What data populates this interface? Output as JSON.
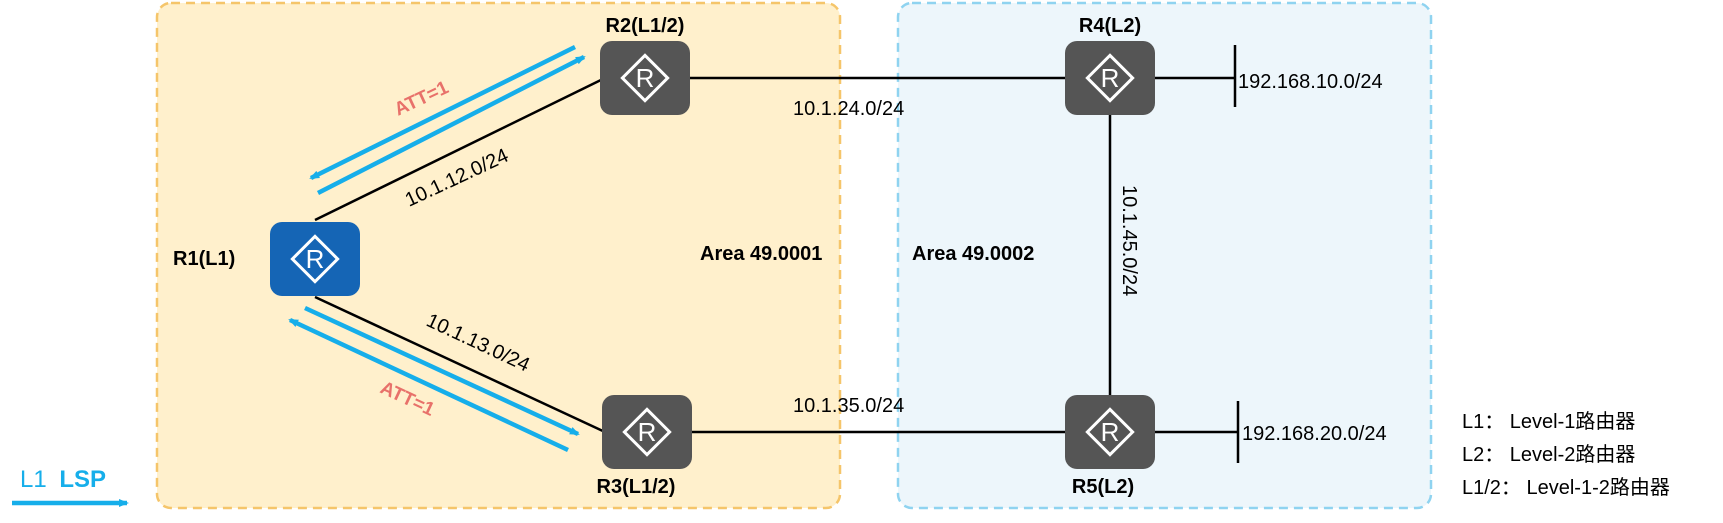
{
  "colors": {
    "area1_fill": "#fff0cc",
    "area1_border": "#f5c56a",
    "area2_fill": "#edf6fb",
    "area2_border": "#8fd3f0",
    "router_dark": "#555555",
    "router_blue": "#1565b5",
    "lsp_arrow": "#16aeea",
    "att_text": "#e8716a"
  },
  "areas": {
    "area1": {
      "label": "Area 49.0001"
    },
    "area2": {
      "label": "Area 49.0002"
    }
  },
  "routers": {
    "r1": {
      "label": "R1(L1)",
      "icon": "router-icon"
    },
    "r2": {
      "label": "R2(L1/2)",
      "icon": "router-icon"
    },
    "r3": {
      "label": "R3(L1/2)",
      "icon": "router-icon"
    },
    "r4": {
      "label": "R4(L2)",
      "icon": "router-icon"
    },
    "r5": {
      "label": "R5(L2)",
      "icon": "router-icon"
    }
  },
  "links": {
    "r1_r2": "10.1.12.0/24",
    "r1_r3": "10.1.13.0/24",
    "r2_r4": "10.1.24.0/24",
    "r3_r5": "10.1.35.0/24",
    "r4_r5": "10.1.45.0/24"
  },
  "networks": {
    "r4_net": "192.168.10.0/24",
    "r5_net": "192.168.20.0/24"
  },
  "att": {
    "top": "ATT=1",
    "bottom": "ATT=1"
  },
  "legend": {
    "lsp_prefix": "L1",
    "lsp_suffix": "LSP",
    "items": [
      "L1： Level-1路由器",
      "L2： Level-2路由器",
      "L1/2： Level-1-2路由器"
    ]
  }
}
